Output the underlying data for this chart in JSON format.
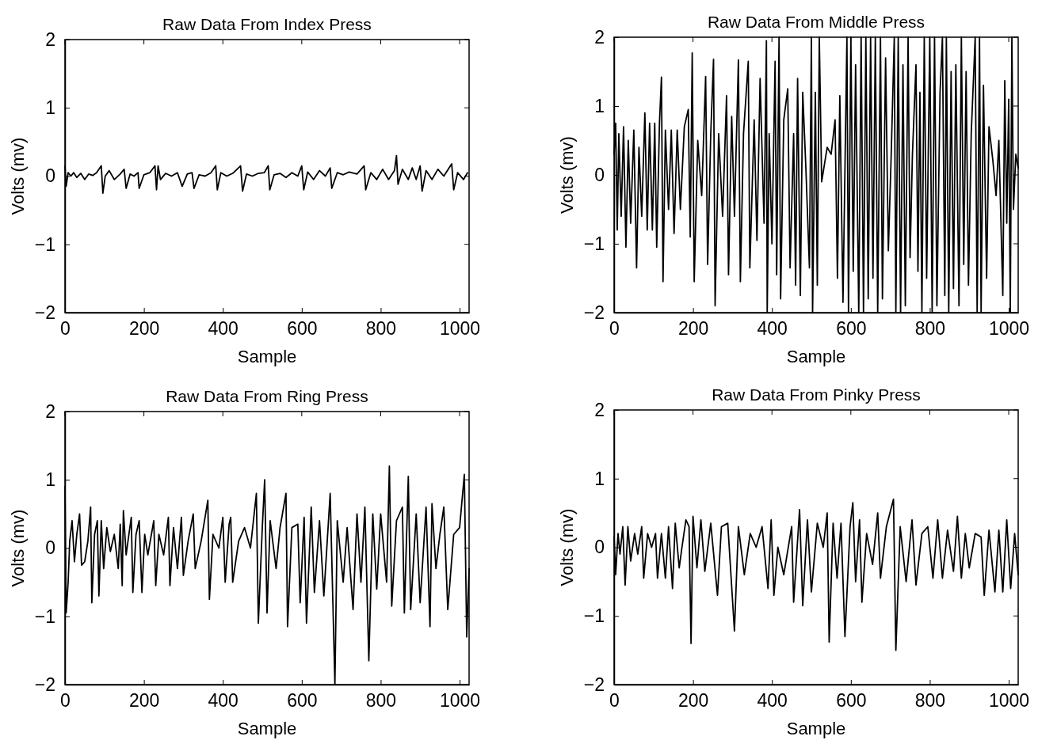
{
  "chart_data": [
    {
      "type": "line",
      "title": "Raw Data From Index Press",
      "xlabel": "Sample",
      "ylabel": "Volts (mv)",
      "xlim": [
        0,
        1024
      ],
      "ylim": [
        -2,
        2
      ],
      "xticks": [
        0,
        200,
        400,
        600,
        800,
        1000
      ],
      "yticks": [
        -2,
        -1,
        0,
        1,
        2
      ],
      "x": [
        0,
        3,
        8,
        15,
        22,
        30,
        40,
        50,
        60,
        70,
        80,
        92,
        96,
        102,
        112,
        125,
        140,
        150,
        155,
        165,
        175,
        185,
        188,
        200,
        215,
        228,
        232,
        236,
        242,
        255,
        270,
        285,
        297,
        310,
        322,
        327,
        340,
        355,
        370,
        382,
        386,
        395,
        410,
        425,
        445,
        450,
        460,
        475,
        490,
        505,
        515,
        519,
        530,
        545,
        560,
        575,
        590,
        600,
        605,
        615,
        630,
        645,
        660,
        672,
        676,
        690,
        705,
        720,
        740,
        758,
        762,
        775,
        790,
        805,
        820,
        835,
        840,
        844,
        855,
        870,
        880,
        890,
        900,
        905,
        915,
        930,
        945,
        960,
        980,
        985,
        995,
        1010,
        1020
      ],
      "series": [
        {
          "color": "#000000",
          "values": [
            0.15,
            -0.15,
            0.05,
            0.0,
            0.05,
            -0.02,
            0.04,
            -0.05,
            0.03,
            0.01,
            0.05,
            0.15,
            -0.25,
            0.0,
            0.08,
            -0.05,
            0.03,
            0.1,
            -0.18,
            0.03,
            0.0,
            0.05,
            -0.18,
            0.02,
            0.05,
            0.15,
            -0.2,
            0.15,
            -0.05,
            0.04,
            0.0,
            0.05,
            -0.15,
            0.03,
            0.05,
            -0.18,
            0.02,
            0.0,
            0.05,
            0.15,
            -0.2,
            0.05,
            0.0,
            0.04,
            0.15,
            -0.22,
            0.03,
            0.0,
            0.04,
            0.05,
            0.15,
            -0.2,
            0.02,
            0.04,
            -0.02,
            0.05,
            0.0,
            0.15,
            -0.2,
            0.06,
            -0.05,
            0.08,
            0.0,
            0.12,
            -0.18,
            0.05,
            0.02,
            0.06,
            0.03,
            0.15,
            -0.2,
            0.05,
            -0.05,
            0.1,
            -0.05,
            0.08,
            0.3,
            -0.12,
            0.1,
            -0.05,
            0.12,
            -0.05,
            0.15,
            -0.22,
            0.08,
            -0.05,
            0.1,
            0.0,
            0.18,
            -0.2,
            0.05,
            -0.05,
            0.05
          ]
        }
      ]
    },
    {
      "type": "line",
      "title": "Raw Data From Middle Press",
      "xlabel": "Sample",
      "ylabel": "Volts (mv)",
      "xlim": [
        0,
        1024
      ],
      "ylim": [
        -2,
        2
      ],
      "xticks": [
        0,
        200,
        400,
        600,
        800,
        1000
      ],
      "yticks": [
        -2,
        -1,
        0,
        1,
        2
      ],
      "x": [
        0,
        4,
        8,
        12,
        18,
        24,
        30,
        36,
        42,
        50,
        57,
        63,
        70,
        78,
        84,
        90,
        97,
        103,
        108,
        115,
        120,
        124,
        130,
        138,
        145,
        152,
        160,
        168,
        178,
        188,
        193,
        198,
        203,
        212,
        222,
        232,
        237,
        245,
        252,
        256,
        265,
        275,
        285,
        290,
        298,
        305,
        315,
        320,
        328,
        340,
        344,
        355,
        362,
        370,
        380,
        386,
        388,
        393,
        400,
        408,
        412,
        418,
        422,
        430,
        440,
        446,
        455,
        460,
        465,
        472,
        478,
        486,
        495,
        500,
        503,
        510,
        515,
        520,
        526,
        540,
        550,
        560,
        566,
        572,
        580,
        590,
        594,
        600,
        606,
        612,
        620,
        626,
        632,
        638,
        644,
        650,
        656,
        662,
        668,
        675,
        680,
        688,
        695,
        702,
        710,
        714,
        720,
        726,
        732,
        738,
        745,
        750,
        756,
        765,
        770,
        775,
        780,
        786,
        792,
        800,
        806,
        812,
        818,
        826,
        832,
        838,
        842,
        848,
        854,
        860,
        866,
        874,
        880,
        886,
        892,
        898,
        905,
        915,
        920,
        926,
        930,
        936,
        944,
        950,
        960,
        968,
        975,
        985,
        990,
        995,
        1000,
        1004,
        1008,
        1012,
        1018,
        1024
      ],
      "series": [
        {
          "color": "#000000",
          "values": [
            0.3,
            0.75,
            -0.8,
            0.6,
            -0.6,
            0.7,
            -1.05,
            0.5,
            -0.7,
            0.65,
            -1.35,
            0.4,
            -0.6,
            0.9,
            -0.8,
            0.75,
            -0.8,
            0.75,
            -1.05,
            0.75,
            1.42,
            -1.55,
            0.65,
            -0.5,
            0.65,
            -0.85,
            0.65,
            -0.5,
            0.7,
            0.95,
            -0.9,
            1.77,
            -1.55,
            0.5,
            -0.3,
            1.43,
            -1.3,
            0.6,
            1.68,
            -1.9,
            0.6,
            -0.6,
            1.15,
            -1.45,
            0.85,
            -0.6,
            1.67,
            -1.55,
            0.6,
            1.65,
            -1.35,
            0.8,
            -0.95,
            1.4,
            -0.7,
            1.95,
            -2,
            0.6,
            -1.0,
            1.65,
            -1.45,
            2,
            -1.8,
            0.8,
            1.25,
            -1.35,
            0.6,
            -1.6,
            1.4,
            -1.75,
            1.2,
            0.1,
            -1.35,
            2,
            -2,
            1.2,
            -1.6,
            2,
            -0.1,
            0.4,
            0.3,
            0.8,
            -1.5,
            1.15,
            -1.85,
            2,
            -2,
            2,
            -1.4,
            1.6,
            -2,
            2,
            -2,
            2,
            -1.8,
            2,
            -1.5,
            2,
            -2,
            2,
            -1.8,
            1.7,
            -1.1,
            0.25,
            2,
            -2,
            2,
            -2,
            1.6,
            -1.9,
            2,
            -1.2,
            0.3,
            1.6,
            -1.4,
            1.2,
            -2,
            2,
            -1.5,
            2,
            -2,
            2,
            -1.9,
            1.2,
            2,
            -1.75,
            2,
            -2,
            1.5,
            -1.65,
            1.6,
            -1.9,
            2,
            -1.3,
            1.5,
            -1.6,
            0.6,
            2,
            -2,
            2,
            -2,
            1.3,
            -1.5,
            0.7,
            0.2,
            -0.3,
            0.5,
            -1.75,
            1.37,
            -0.7,
            1.1,
            -2,
            2,
            -0.5,
            0.3,
            0.1
          ]
        }
      ]
    },
    {
      "type": "line",
      "title": "Raw Data From Ring Press",
      "xlabel": "Sample",
      "ylabel": "Volts (mv)",
      "xlim": [
        0,
        1024
      ],
      "ylim": [
        -2,
        2
      ],
      "xticks": [
        0,
        200,
        400,
        600,
        800,
        1000
      ],
      "yticks": [
        -2,
        -1,
        0,
        1,
        2
      ],
      "x": [
        0,
        3,
        8,
        12,
        18,
        24,
        30,
        37,
        42,
        50,
        58,
        65,
        68,
        75,
        82,
        86,
        92,
        98,
        106,
        115,
        125,
        135,
        140,
        145,
        148,
        155,
        162,
        168,
        172,
        180,
        188,
        195,
        202,
        210,
        225,
        230,
        238,
        250,
        262,
        266,
        275,
        285,
        295,
        300,
        312,
        325,
        330,
        345,
        362,
        366,
        375,
        390,
        400,
        406,
        416,
        420,
        425,
        440,
        455,
        470,
        485,
        490,
        500,
        506,
        512,
        520,
        535,
        545,
        560,
        564,
        575,
        590,
        596,
        606,
        612,
        624,
        632,
        645,
        656,
        672,
        684,
        690,
        705,
        715,
        730,
        740,
        750,
        760,
        770,
        780,
        790,
        800,
        815,
        822,
        828,
        840,
        855,
        860,
        870,
        876,
        890,
        900,
        915,
        925,
        930,
        940,
        950,
        960,
        970,
        985,
        1000,
        1012,
        1018,
        1024
      ],
      "series": [
        {
          "color": "#000000",
          "values": [
            0.9,
            -0.95,
            -0.5,
            0.1,
            0.4,
            -0.2,
            0.2,
            0.5,
            -0.25,
            -0.2,
            0.1,
            0.6,
            -0.8,
            0.2,
            0.4,
            -0.7,
            0.4,
            -0.3,
            0.3,
            -0.05,
            0.2,
            -0.3,
            0.35,
            -0.55,
            0.55,
            -0.1,
            0.2,
            0.45,
            -0.65,
            0.2,
            0.4,
            -0.65,
            0.2,
            -0.1,
            0.4,
            -0.55,
            0.2,
            -0.1,
            0.45,
            -0.55,
            0.3,
            -0.3,
            0.45,
            -0.4,
            0.1,
            0.5,
            -0.3,
            0.1,
            0.7,
            -0.75,
            0.2,
            0.0,
            0.45,
            -0.5,
            0.35,
            0.45,
            -0.5,
            0.1,
            0.3,
            0.0,
            0.8,
            -1.1,
            0.3,
            1.0,
            -0.95,
            0.4,
            -0.3,
            0.3,
            0.8,
            -1.15,
            0.3,
            0.35,
            -0.8,
            0.45,
            -1.1,
            0.6,
            -0.65,
            0.4,
            -0.7,
            0.8,
            -2.0,
            0.4,
            -0.5,
            0.3,
            -0.9,
            0.5,
            -0.5,
            0.6,
            -1.65,
            0.5,
            -0.6,
            0.5,
            -0.5,
            1.2,
            -0.85,
            0.4,
            0.6,
            -0.95,
            1.05,
            -0.9,
            0.5,
            -0.8,
            0.6,
            -1.15,
            0.65,
            -0.3,
            0.2,
            0.6,
            -0.9,
            0.2,
            0.3,
            1.08,
            -1.3,
            -0.3
          ]
        }
      ]
    },
    {
      "type": "line",
      "title": "Raw Data From Pinky Press",
      "xlabel": "Sample",
      "ylabel": "Volts (mv)",
      "xlim": [
        0,
        1024
      ],
      "ylim": [
        -2,
        2
      ],
      "xticks": [
        0,
        200,
        400,
        600,
        800,
        1000
      ],
      "yticks": [
        -2,
        -1,
        0,
        1,
        2
      ],
      "x": [
        0,
        4,
        10,
        15,
        22,
        28,
        35,
        42,
        52,
        60,
        70,
        75,
        85,
        95,
        105,
        110,
        120,
        130,
        138,
        148,
        155,
        165,
        172,
        182,
        190,
        195,
        200,
        210,
        220,
        230,
        245,
        262,
        272,
        288,
        305,
        315,
        330,
        345,
        360,
        375,
        390,
        398,
        405,
        415,
        430,
        450,
        455,
        470,
        478,
        490,
        500,
        515,
        530,
        540,
        545,
        555,
        565,
        575,
        585,
        598,
        605,
        612,
        622,
        628,
        640,
        655,
        668,
        675,
        690,
        708,
        714,
        725,
        740,
        755,
        765,
        780,
        795,
        808,
        820,
        832,
        845,
        860,
        870,
        880,
        890,
        900,
        915,
        930,
        938,
        950,
        965,
        975,
        985,
        995,
        1005,
        1015,
        1024
      ],
      "series": [
        {
          "color": "#000000",
          "values": [
            0.15,
            -0.4,
            0.2,
            -0.1,
            0.3,
            -0.55,
            0.3,
            -0.2,
            0.2,
            -0.1,
            0.3,
            -0.45,
            0.2,
            0.0,
            0.2,
            -0.45,
            0.2,
            -0.45,
            0.3,
            -0.6,
            0.35,
            -0.3,
            0.0,
            0.4,
            0.3,
            -1.4,
            0.45,
            -0.3,
            0.4,
            -0.35,
            0.35,
            -0.7,
            0.3,
            0.35,
            -1.22,
            0.3,
            -0.4,
            0.2,
            0.0,
            0.3,
            -0.6,
            0.4,
            -0.7,
            0.0,
            -0.4,
            0.3,
            -0.8,
            0.55,
            -0.85,
            0.4,
            -0.65,
            0.35,
            0.0,
            0.5,
            -1.38,
            0.35,
            -0.45,
            0.35,
            -1.3,
            0.3,
            0.65,
            -0.5,
            0.4,
            -0.8,
            0.2,
            -0.25,
            0.5,
            -0.45,
            0.3,
            0.7,
            -1.5,
            0.3,
            -0.5,
            0.4,
            -0.55,
            0.2,
            0.3,
            -0.45,
            0.4,
            -0.45,
            0.25,
            -0.35,
            0.45,
            -0.45,
            0.2,
            -0.3,
            0.2,
            0.15,
            -0.7,
            0.25,
            -0.65,
            0.25,
            -0.65,
            0.4,
            -0.6,
            0.2,
            -0.4
          ]
        }
      ]
    }
  ]
}
